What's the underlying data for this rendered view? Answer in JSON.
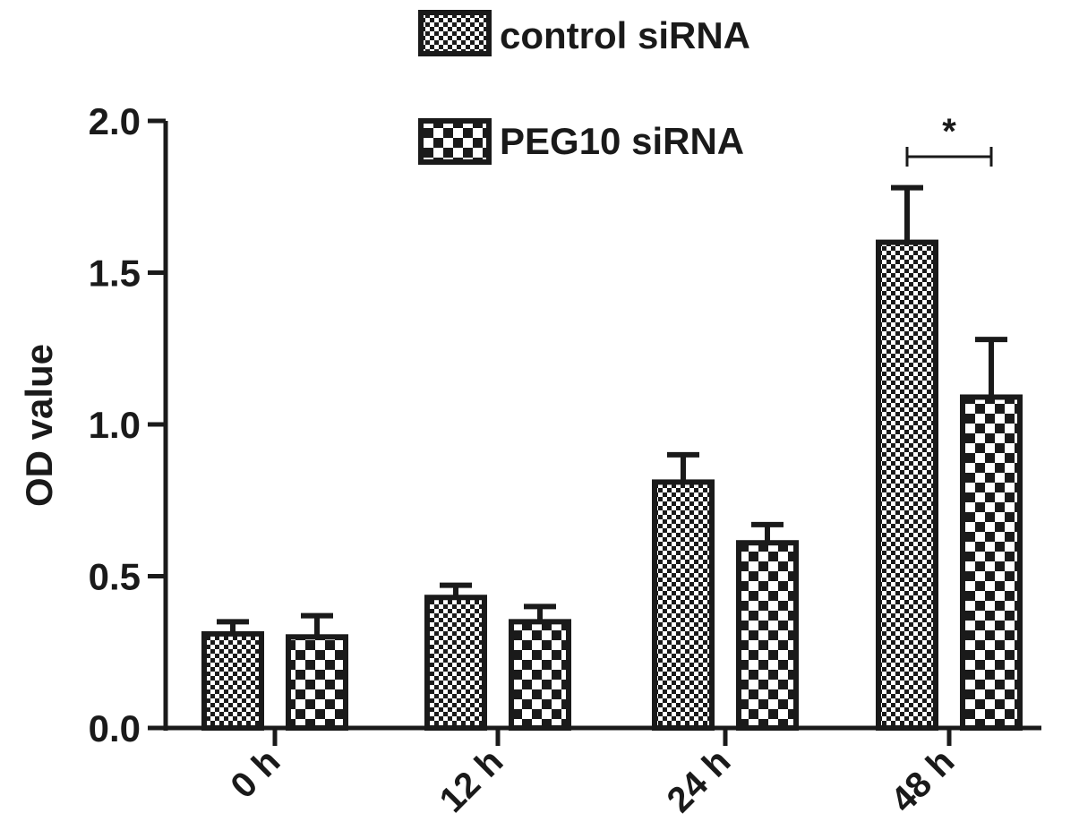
{
  "chart_data": {
    "type": "bar",
    "categories": [
      "0 h",
      "12 h",
      "24 h",
      "48 h"
    ],
    "series": [
      {
        "name": "control siRNA",
        "values": [
          0.31,
          0.43,
          0.81,
          1.6
        ],
        "errors": [
          0.04,
          0.04,
          0.09,
          0.18
        ],
        "pattern": "fine-checker"
      },
      {
        "name": "PEG10 siRNA",
        "values": [
          0.3,
          0.35,
          0.61,
          1.09
        ],
        "errors": [
          0.07,
          0.05,
          0.06,
          0.19
        ],
        "pattern": "coarse-checker"
      }
    ],
    "ylabel": "OD value",
    "xlabel": "",
    "ylim": [
      0,
      2.0
    ],
    "yticks": [
      "0.0",
      "0.5",
      "1.0",
      "1.5",
      "2.0"
    ],
    "significance": {
      "category": "48 h",
      "label": "*"
    },
    "legend_position": "top-center",
    "grid": false,
    "colors": {
      "ink": "#1a1a1a",
      "fill_light": "#ffffff"
    }
  }
}
